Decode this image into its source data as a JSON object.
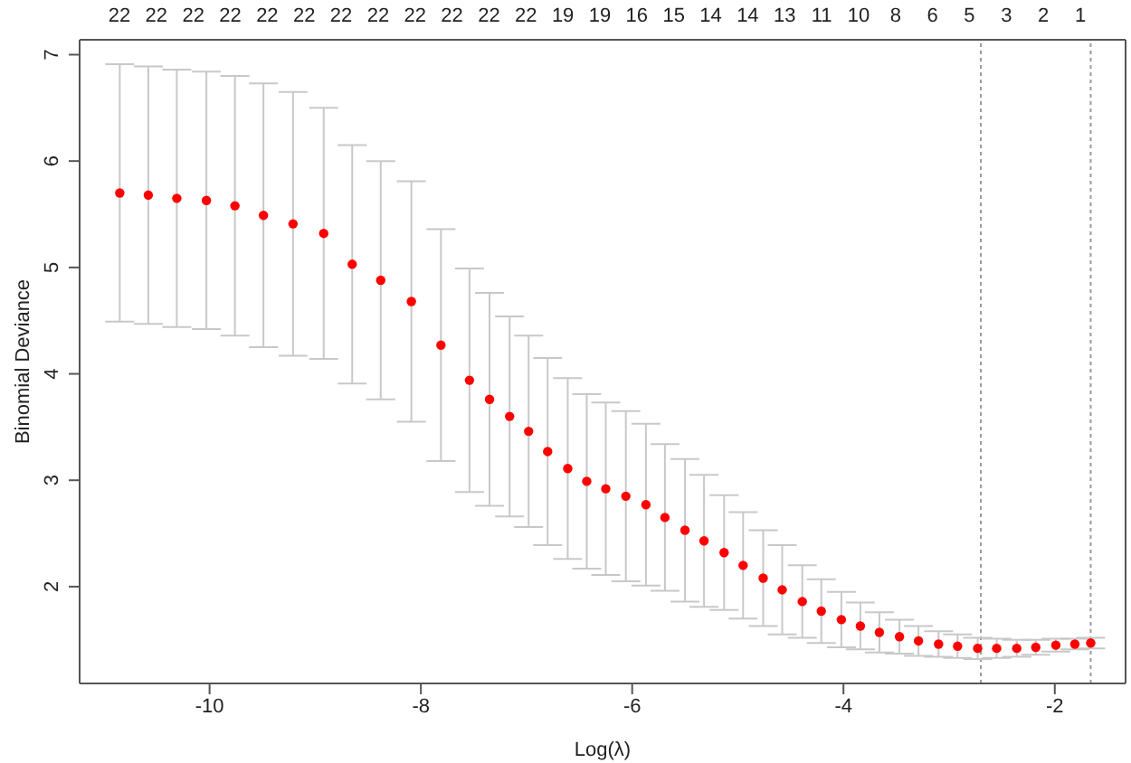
{
  "chart_data": {
    "type": "scatter",
    "xlabel": "Log(λ)",
    "ylabel": "Binomial Deviance",
    "xlim": [
      -11.23,
      -1.33
    ],
    "ylim": [
      1.09,
      7.14
    ],
    "xticks": [
      -10,
      -8,
      -6,
      -4,
      -2
    ],
    "yticks": [
      2,
      3,
      4,
      5,
      6,
      7
    ],
    "annotations": [
      "22",
      "22",
      "22",
      "22",
      "22",
      "22",
      "22",
      "22",
      "22",
      "22",
      "22",
      "22",
      "19",
      "19",
      "16",
      "15",
      "14",
      "14",
      "13",
      "11",
      "10",
      "8",
      "6",
      "5",
      "3",
      "2",
      "1"
    ],
    "marker": "circle",
    "ref_lines": [
      {
        "axis": "x",
        "value": -2.7,
        "color": "#9a9a9a",
        "line_style": "dotted"
      },
      {
        "axis": "x",
        "value": -1.66,
        "color": "#9a9a9a",
        "line_style": "dotted"
      }
    ],
    "series": [
      {
        "color": "#ff0000",
        "x": [
          -10.85,
          -10.58,
          -10.31,
          -10.03,
          -9.76,
          -9.49,
          -9.21,
          -8.92,
          -8.65,
          -8.38,
          -8.09,
          -7.81,
          -7.54,
          -7.35,
          -7.16,
          -6.98,
          -6.8,
          -6.61,
          -6.43,
          -6.25,
          -6.06,
          -5.87,
          -5.69,
          -5.5,
          -5.32,
          -5.13,
          -4.95,
          -4.76,
          -4.58,
          -4.39,
          -4.21,
          -4.02,
          -3.84,
          -3.66,
          -3.47,
          -3.29,
          -3.1,
          -2.92,
          -2.73,
          -2.55,
          -2.36,
          -2.18,
          -1.99,
          -1.81,
          -1.66
        ],
        "values": [
          5.7,
          5.68,
          5.65,
          5.63,
          5.58,
          5.49,
          5.41,
          5.32,
          5.03,
          4.88,
          4.68,
          4.27,
          3.94,
          3.76,
          3.6,
          3.46,
          3.27,
          3.11,
          2.99,
          2.92,
          2.85,
          2.77,
          2.65,
          2.53,
          2.43,
          2.32,
          2.2,
          2.08,
          1.97,
          1.86,
          1.77,
          1.69,
          1.63,
          1.57,
          1.53,
          1.49,
          1.46,
          1.44,
          1.42,
          1.42,
          1.42,
          1.43,
          1.45,
          1.46,
          1.47
        ],
        "errors": [
          1.21,
          1.21,
          1.21,
          1.21,
          1.22,
          1.24,
          1.24,
          1.18,
          1.12,
          1.12,
          1.13,
          1.09,
          1.05,
          1.0,
          0.94,
          0.9,
          0.88,
          0.85,
          0.82,
          0.81,
          0.8,
          0.76,
          0.69,
          0.67,
          0.62,
          0.54,
          0.5,
          0.45,
          0.42,
          0.34,
          0.3,
          0.26,
          0.22,
          0.19,
          0.16,
          0.14,
          0.12,
          0.11,
          0.1,
          0.09,
          0.08,
          0.07,
          0.06,
          0.05,
          0.05
        ]
      }
    ]
  }
}
